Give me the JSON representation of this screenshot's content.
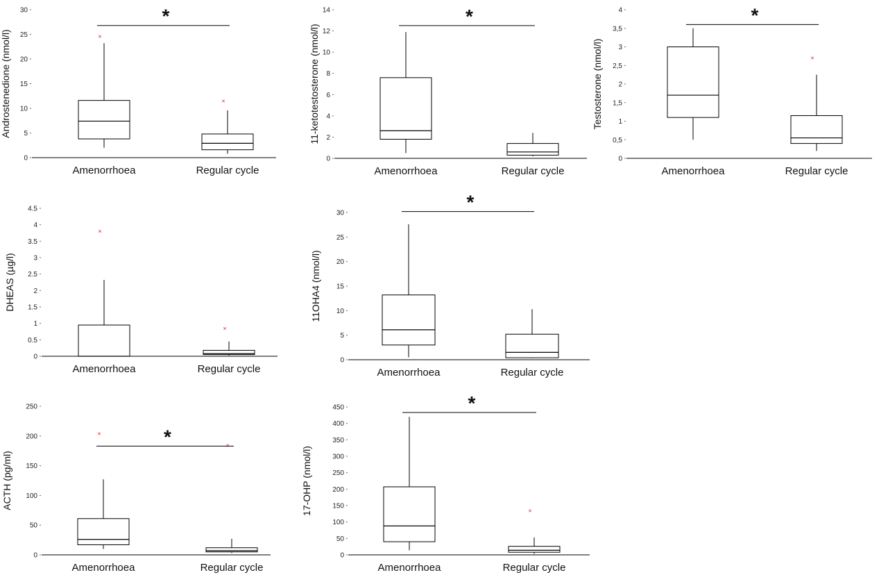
{
  "colors": {
    "box": "#000000",
    "axis": "#000000",
    "outlier": "#e0202a"
  },
  "chart_data": [
    {
      "type": "box",
      "ylabel": "Androstenedione (nmol/l)",
      "ylim": [
        0,
        30
      ],
      "yticks": [
        0,
        5,
        10,
        15,
        20,
        25,
        30
      ],
      "ytick_labels": [
        "0",
        "5",
        "10",
        "15",
        "20",
        "25",
        "30"
      ],
      "categories": [
        "Amenorrhoea",
        "Regular cycle"
      ],
      "boxes": [
        {
          "min": 2,
          "q1": 3.8,
          "median": 7.4,
          "q3": 11.6,
          "max": 23.2,
          "outliers": [
            24.6
          ]
        },
        {
          "min": 0.8,
          "q1": 1.6,
          "median": 2.9,
          "q3": 4.8,
          "max": 9.6,
          "outliers": [
            11.5
          ]
        }
      ],
      "significance": {
        "marker": "*",
        "level": 26.8
      }
    },
    {
      "type": "box",
      "ylabel": "11-ketotestosterone (nmol/l)",
      "ylim": [
        0,
        14
      ],
      "yticks": [
        0,
        2,
        4,
        6,
        8,
        10,
        12,
        14
      ],
      "ytick_labels": [
        "0",
        "2",
        "4",
        "6",
        "8",
        "10",
        "12",
        "14"
      ],
      "categories": [
        "Amenorrhoea",
        "Regular cycle"
      ],
      "boxes": [
        {
          "min": 0.5,
          "q1": 1.8,
          "median": 2.6,
          "q3": 7.6,
          "max": 11.9,
          "outliers": []
        },
        {
          "min": 0.2,
          "q1": 0.3,
          "median": 0.6,
          "q3": 1.4,
          "max": 2.4,
          "outliers": []
        }
      ],
      "significance": {
        "marker": "*",
        "level": 12.5
      }
    },
    {
      "type": "box",
      "ylabel": "Testosterone (nmol/l)",
      "ylim": [
        0,
        4
      ],
      "yticks": [
        0,
        0.5,
        1,
        1.5,
        2,
        2.5,
        3,
        3.5,
        4
      ],
      "ytick_labels": [
        "0",
        "0,5",
        "1",
        "1,5",
        "2",
        "2,5",
        "3",
        "3,5",
        "4"
      ],
      "categories": [
        "Amenorrhoea",
        "Regular cycle"
      ],
      "boxes": [
        {
          "min": 0.5,
          "q1": 1.1,
          "median": 1.7,
          "q3": 3.0,
          "max": 3.5,
          "outliers": []
        },
        {
          "min": 0.2,
          "q1": 0.4,
          "median": 0.55,
          "q3": 1.15,
          "max": 2.25,
          "outliers": [
            2.7
          ]
        }
      ],
      "significance": {
        "marker": "*",
        "level": 3.6
      }
    },
    {
      "type": "box",
      "ylabel": "DHEAS (µg/l)",
      "ylim": [
        0,
        4.5
      ],
      "yticks": [
        0,
        0.5,
        1,
        1.5,
        2,
        2.5,
        3,
        3.5,
        4,
        4.5
      ],
      "ytick_labels": [
        "0",
        "0.5",
        "1",
        "1.5",
        "2",
        "2.5",
        "3",
        "3.5",
        "4",
        "4.5"
      ],
      "categories": [
        "Amenorrhoea",
        "Regular cycle"
      ],
      "boxes": [
        {
          "min": 0,
          "q1": 0,
          "median": 0,
          "q3": 0.95,
          "max": 2.32,
          "outliers": [
            3.8
          ]
        },
        {
          "min": 0.02,
          "q1": 0.05,
          "median": 0.08,
          "q3": 0.18,
          "max": 0.45,
          "outliers": [
            0.85
          ]
        }
      ],
      "significance": null
    },
    {
      "type": "box",
      "ylabel": "11OHA4 (nmol/l)",
      "ylim": [
        0,
        30
      ],
      "yticks": [
        0,
        5,
        10,
        15,
        20,
        25,
        30
      ],
      "ytick_labels": [
        "0",
        "5",
        "10",
        "15",
        "20",
        "25",
        "30"
      ],
      "categories": [
        "Amenorrhoea",
        "Regular cycle"
      ],
      "boxes": [
        {
          "min": 0.5,
          "q1": 3,
          "median": 6.1,
          "q3": 13.2,
          "max": 27.6,
          "outliers": []
        },
        {
          "min": 0.3,
          "q1": 0.4,
          "median": 1.5,
          "q3": 5.2,
          "max": 10.3,
          "outliers": []
        }
      ],
      "significance": {
        "marker": "*",
        "level": 30.2
      }
    },
    {
      "type": "box",
      "ylabel": "ACTH (pg/ml)",
      "ylim": [
        0,
        250
      ],
      "yticks": [
        0,
        50,
        100,
        150,
        200,
        250
      ],
      "ytick_labels": [
        "0",
        "50",
        "100",
        "150",
        "200",
        "250"
      ],
      "categories": [
        "Amenorrhoea",
        "Regular cycle"
      ],
      "boxes": [
        {
          "min": 10,
          "q1": 17,
          "median": 26,
          "q3": 61,
          "max": 127,
          "outliers": [
            204
          ]
        },
        {
          "min": 3,
          "q1": 5,
          "median": 7,
          "q3": 12,
          "max": 27,
          "outliers": [
            184
          ]
        }
      ],
      "significance": {
        "marker": "*",
        "level": 183
      }
    },
    {
      "type": "box",
      "ylabel": "17-OHP (nmol/l)",
      "ylim": [
        0,
        450
      ],
      "yticks": [
        0,
        50,
        100,
        150,
        200,
        250,
        300,
        350,
        400,
        450
      ],
      "ytick_labels": [
        "0",
        "50",
        "100",
        "150",
        "200",
        "250",
        "300",
        "350",
        "400",
        "450"
      ],
      "categories": [
        "Amenorrhoea",
        "Regular cycle"
      ],
      "boxes": [
        {
          "min": 14,
          "q1": 40,
          "median": 88,
          "q3": 207,
          "max": 420,
          "outliers": []
        },
        {
          "min": 3,
          "q1": 8,
          "median": 14,
          "q3": 26,
          "max": 53,
          "outliers": [
            134
          ]
        }
      ],
      "significance": {
        "marker": "*",
        "level": 433
      }
    }
  ]
}
